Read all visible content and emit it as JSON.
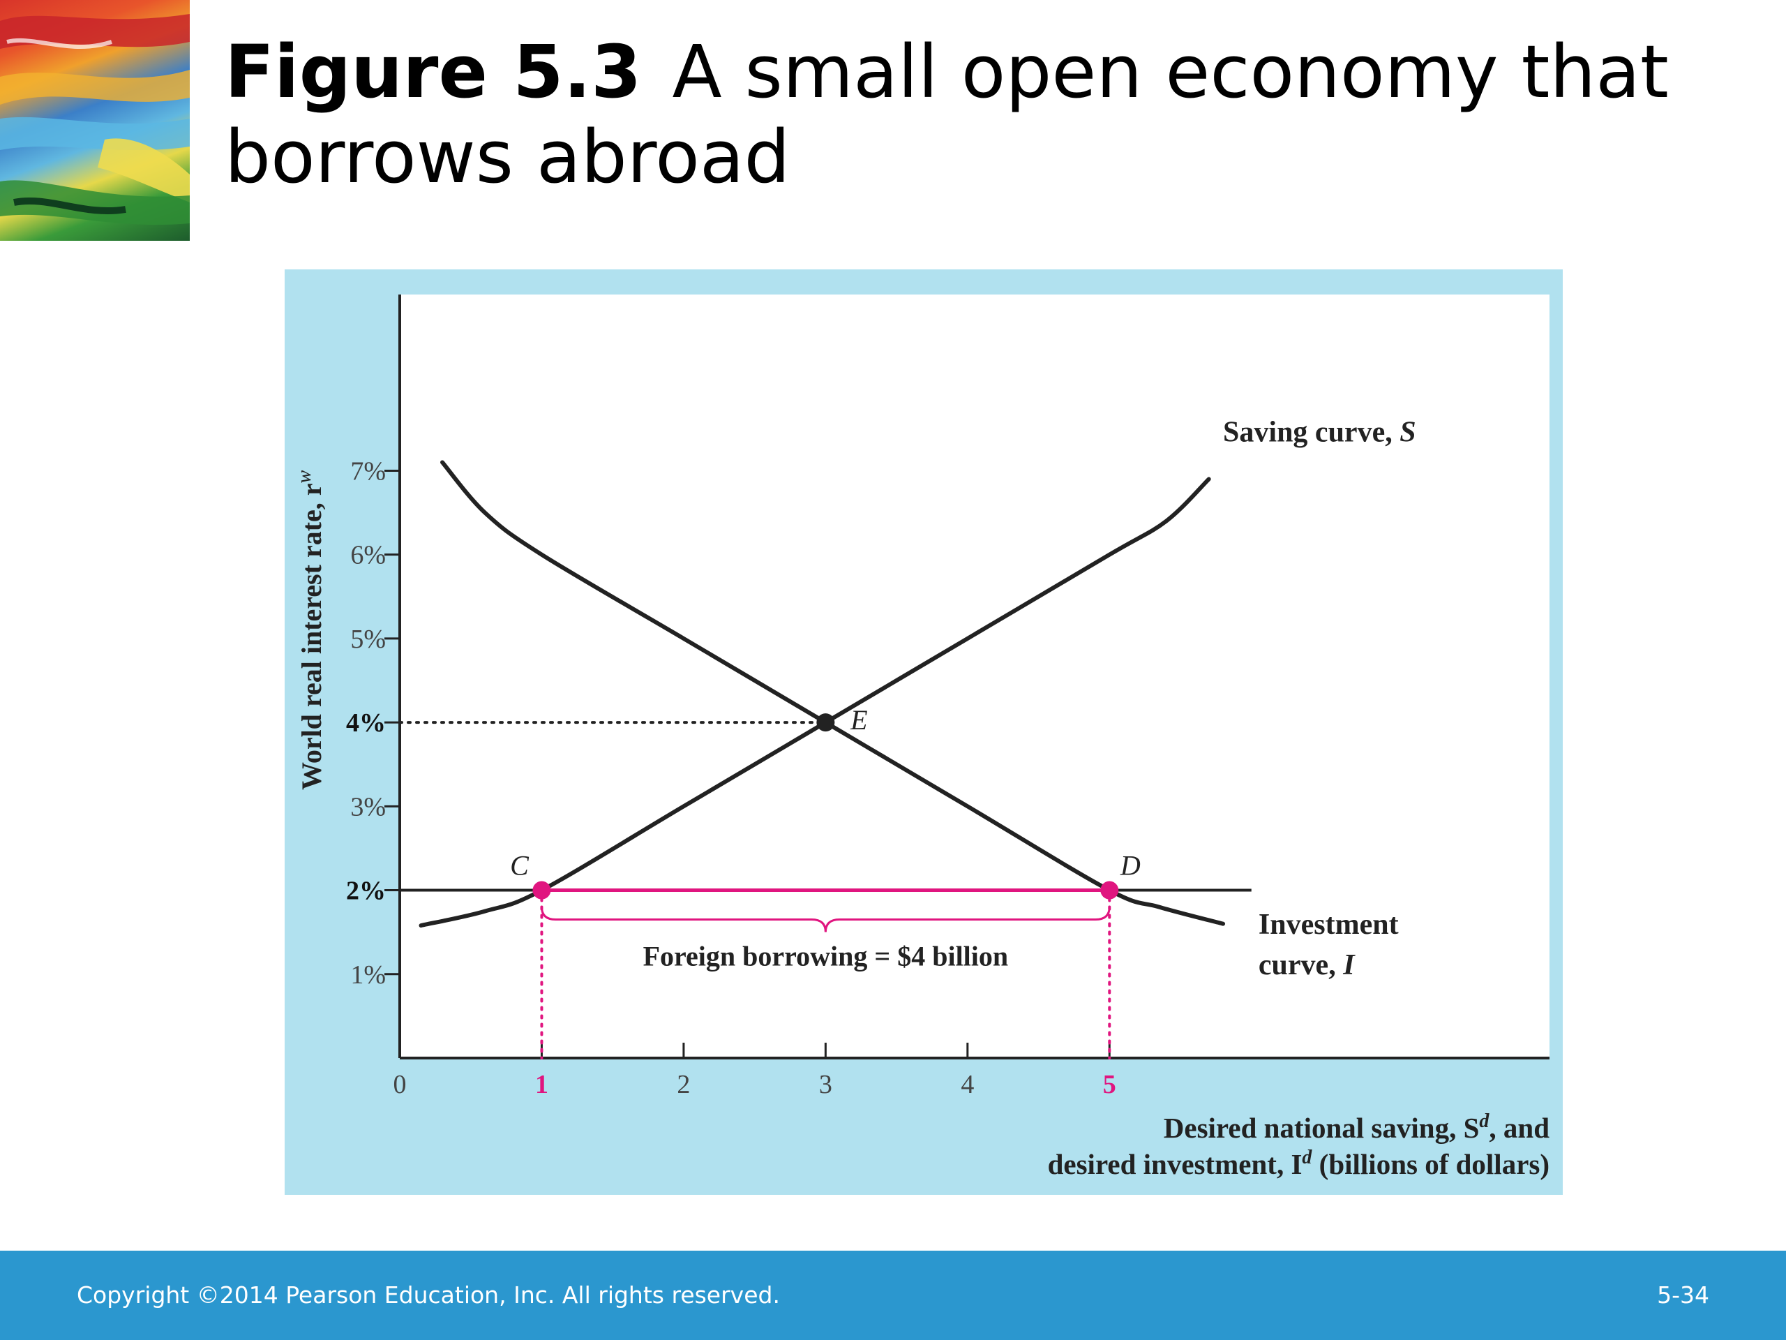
{
  "slide": {
    "figure_number": "Figure 5.3",
    "title_rest": "A small open economy that borrows abroad",
    "copyright": "Copyright ©2014 Pearson Education, Inc. All rights reserved.",
    "page_number": "5-34"
  },
  "colors": {
    "panel_bg": "#b1e1ef",
    "plot_bg": "#ffffff",
    "curve": "#222222",
    "highlight": "#e0157f",
    "footer_bg": "#2b97cf"
  },
  "chart_data": {
    "type": "line",
    "title": "",
    "xlabel_line1_pre": "Desired national saving, S",
    "xlabel_line1_sup": "d",
    "xlabel_line1_post": ", and",
    "xlabel_line2_pre": "desired investment, I",
    "xlabel_line2_sup": "d",
    "xlabel_line2_post": " (billions of dollars)",
    "ylabel_pre": "World real interest rate, r",
    "ylabel_sup": "w",
    "xlim": [
      0,
      8.1
    ],
    "ylim": [
      0,
      9.1
    ],
    "x_ticks": [
      {
        "value": 0,
        "label": "0",
        "highlight": false
      },
      {
        "value": 1,
        "label": "1",
        "highlight": true
      },
      {
        "value": 2,
        "label": "2",
        "highlight": false
      },
      {
        "value": 3,
        "label": "3",
        "highlight": false
      },
      {
        "value": 4,
        "label": "4",
        "highlight": false
      },
      {
        "value": 5,
        "label": "5",
        "highlight": true
      }
    ],
    "y_ticks": [
      {
        "value": 1,
        "label": "1%",
        "bold": false
      },
      {
        "value": 2,
        "label": "2%",
        "bold": true
      },
      {
        "value": 3,
        "label": "3%",
        "bold": false
      },
      {
        "value": 4,
        "label": "4%",
        "bold": true
      },
      {
        "value": 5,
        "label": "5%",
        "bold": false
      },
      {
        "value": 6,
        "label": "6%",
        "bold": false
      },
      {
        "value": 7,
        "label": "7%",
        "bold": false
      }
    ],
    "series": [
      {
        "key": "saving",
        "label_text": "Saving curve, ",
        "label_var": "S",
        "points": [
          [
            0.15,
            1.58
          ],
          [
            0.6,
            1.75
          ],
          [
            1,
            2
          ],
          [
            2,
            3
          ],
          [
            3,
            4
          ],
          [
            4,
            5
          ],
          [
            5,
            6
          ],
          [
            5.4,
            6.4
          ],
          [
            5.7,
            6.9
          ]
        ]
      },
      {
        "key": "investment",
        "label_text_line1": "Investment",
        "label_text_line2": "curve, ",
        "label_var": "I",
        "points": [
          [
            0.3,
            7.1
          ],
          [
            0.6,
            6.5
          ],
          [
            1,
            6
          ],
          [
            2,
            5
          ],
          [
            3,
            4
          ],
          [
            4,
            3
          ],
          [
            5,
            2
          ],
          [
            5.35,
            1.8
          ],
          [
            5.8,
            1.6
          ]
        ]
      }
    ],
    "world_rate_line": {
      "y": 2,
      "x_start": 0,
      "x_end": 6
    },
    "world_rate_reference": {
      "y": 4
    },
    "points": [
      {
        "label": "E",
        "x": 3,
        "y": 4,
        "highlight": false
      },
      {
        "label": "C",
        "x": 1,
        "y": 2,
        "highlight": true
      },
      {
        "label": "D",
        "x": 5,
        "y": 2,
        "highlight": true
      }
    ],
    "annotation": {
      "text": "Foreign borrowing = $4 billion",
      "x_from": 1,
      "x_to": 5
    },
    "grid": false,
    "legend": "none"
  }
}
